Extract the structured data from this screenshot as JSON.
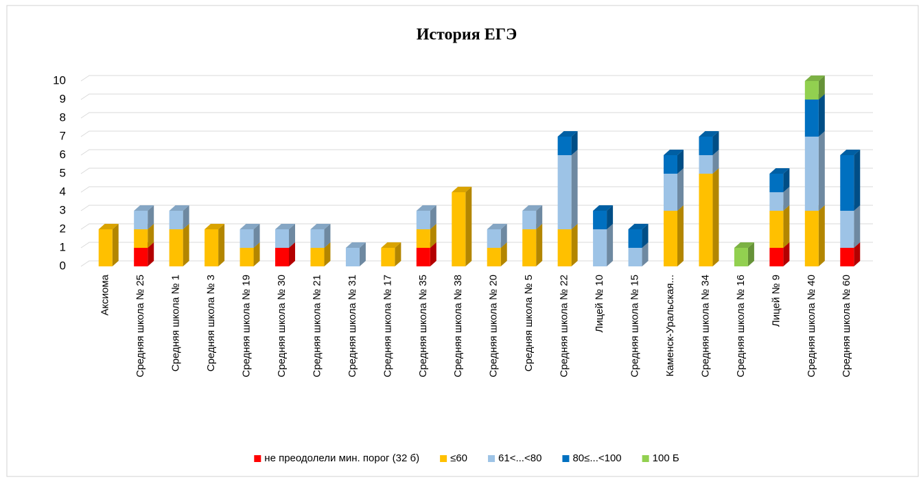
{
  "chart_data": {
    "type": "bar3d_stacked",
    "title": "История ЕГЭ",
    "categories": [
      "Аксиома",
      "Средняя школа № 25",
      "Средняя школа № 1",
      "Средняя школа № 3",
      "Средняя школа № 19",
      "Средняя школа № 30",
      "Средняя школа № 21",
      "Средняя школа № 31",
      "Средняя школа № 17",
      "Средняя школа № 35",
      "Средняя школа № 38",
      "Средняя школа № 20",
      "Средняя школа № 5",
      "Средняя школа № 22",
      "Лицей № 10",
      "Средняя школа № 15",
      "Каменск-Уральская...",
      "Средняя школа № 34",
      "Средняя школа № 16",
      "Лицей № 9",
      "Средняя школа № 40",
      "Средняя школа № 60"
    ],
    "series": [
      {
        "name": "не преодолели мин. порог (32 б)",
        "color": "#ff0000",
        "values": [
          0,
          1,
          0,
          0,
          0,
          1,
          0,
          0,
          0,
          1,
          0,
          0,
          0,
          0,
          0,
          0,
          0,
          0,
          0,
          1,
          0,
          1
        ]
      },
      {
        "name": "≤60",
        "color": "#ffc000",
        "values": [
          2,
          1,
          2,
          2,
          1,
          0,
          1,
          0,
          1,
          1,
          4,
          1,
          2,
          2,
          0,
          0,
          3,
          5,
          0,
          2,
          3,
          0
        ]
      },
      {
        "name": "61<...<80",
        "color": "#9dc3e6",
        "values": [
          0,
          1,
          1,
          0,
          1,
          1,
          1,
          1,
          0,
          1,
          0,
          1,
          1,
          4,
          2,
          1,
          2,
          1,
          0,
          1,
          4,
          2
        ]
      },
      {
        "name": "80≤...<100",
        "color": "#0070c0",
        "values": [
          0,
          0,
          0,
          0,
          0,
          0,
          0,
          0,
          0,
          0,
          0,
          0,
          0,
          1,
          1,
          1,
          1,
          1,
          0,
          1,
          2,
          3
        ]
      },
      {
        "name": "100 Б",
        "color": "#92d050",
        "values": [
          0,
          0,
          0,
          0,
          0,
          0,
          0,
          0,
          0,
          0,
          0,
          0,
          0,
          0,
          0,
          0,
          0,
          0,
          1,
          0,
          1,
          0
        ]
      }
    ],
    "ylim": [
      0,
      10
    ],
    "yticks": [
      0,
      1,
      2,
      3,
      4,
      5,
      6,
      7,
      8,
      9,
      10
    ],
    "grid": true,
    "legend": "bottom"
  }
}
